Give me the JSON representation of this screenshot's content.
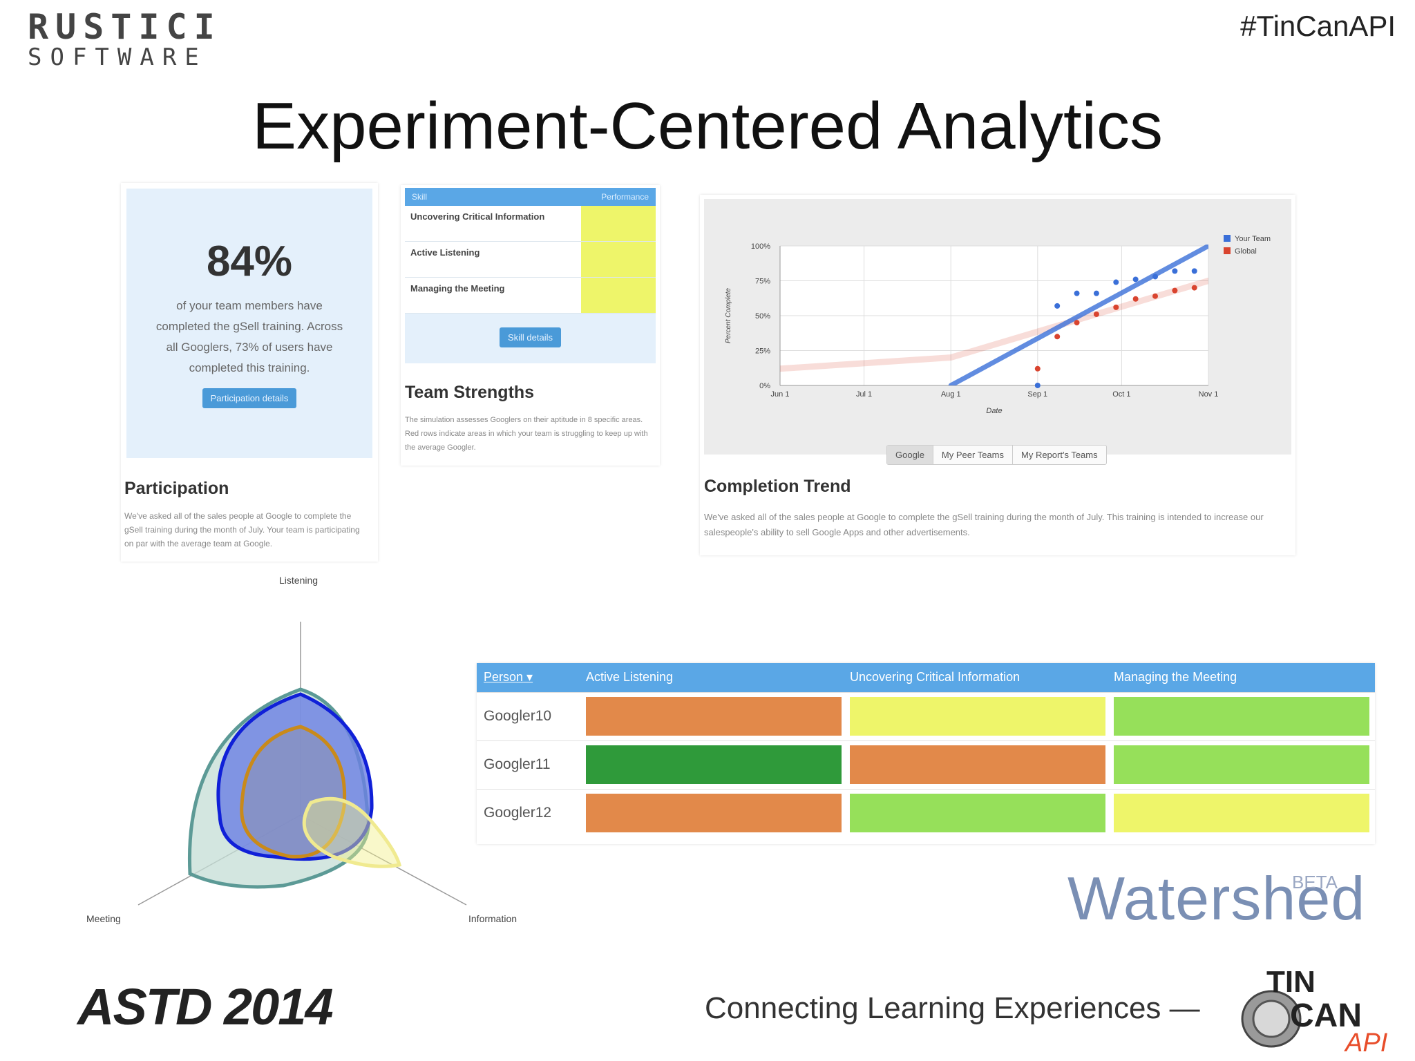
{
  "header": {
    "logo_line1": "RUSTICI",
    "logo_line2": "SOFTWARE",
    "hashtag": "#TinCanAPI",
    "title": "Experiment-Centered Analytics"
  },
  "participation": {
    "percent": "84%",
    "text": "of your team members have completed the gSell training. Across all Googlers, 73% of users have completed this training.",
    "button": "Participation details",
    "heading": "Participation",
    "description": "We've asked all of the sales people at Google to complete the gSell training during the month of July. Your team is participating on par with the average team at Google."
  },
  "team_strengths": {
    "col_skill": "Skill",
    "col_performance": "Performance",
    "skills": [
      "Uncovering Critical Information",
      "Active Listening",
      "Managing the Meeting"
    ],
    "button": "Skill details",
    "heading": "Team Strengths",
    "description": "The simulation assesses Googlers on their aptitude in 8 specific areas. Red rows indicate areas in which your team is struggling to keep up with the average Googler.",
    "performance_color": "#eef56a"
  },
  "completion_trend": {
    "heading": "Completion Trend",
    "description": "We've asked all of the sales people at Google to complete the gSell training during the month of July. This training is intended to increase our salespeople's ability to sell Google Apps and other advertisements.",
    "segments": [
      "Google",
      "My Peer Teams",
      "My Report's Teams"
    ],
    "selected_segment": "Google"
  },
  "chart_data": {
    "type": "line",
    "title": "",
    "xlabel": "Date",
    "ylabel": "Percent Complete",
    "x_ticks": [
      "Jun 1",
      "Jul 1",
      "Aug 1",
      "Sep 1",
      "Oct 1",
      "Nov 1"
    ],
    "y_ticks": [
      "0%",
      "25%",
      "50%",
      "75%",
      "100%"
    ],
    "ylim": [
      0,
      100
    ],
    "legend_position": "right",
    "series": [
      {
        "name": "Your Team",
        "color": "#3a6fd8",
        "points": [
          [
            "Sep 1",
            0
          ],
          [
            "Sep 8",
            57
          ],
          [
            "Sep 15",
            66
          ],
          [
            "Sep 22",
            66
          ],
          [
            "Sep 29",
            74
          ],
          [
            "Oct 6",
            76
          ],
          [
            "Oct 13",
            78
          ],
          [
            "Oct 20",
            82
          ],
          [
            "Oct 27",
            82
          ]
        ],
        "trend": [
          [
            "Aug 1",
            0
          ],
          [
            "Nov 1",
            100
          ]
        ]
      },
      {
        "name": "Global",
        "color": "#d9442f",
        "points": [
          [
            "Sep 1",
            12
          ],
          [
            "Sep 8",
            35
          ],
          [
            "Sep 15",
            45
          ],
          [
            "Sep 22",
            51
          ],
          [
            "Sep 29",
            56
          ],
          [
            "Oct 6",
            62
          ],
          [
            "Oct 13",
            64
          ],
          [
            "Oct 20",
            68
          ],
          [
            "Oct 27",
            70
          ]
        ],
        "trend": [
          [
            "Jun 1",
            12
          ],
          [
            "Aug 1",
            20
          ],
          [
            "Nov 1",
            75
          ]
        ]
      }
    ]
  },
  "radar": {
    "axis_labels": [
      "Listening",
      "Information",
      "Meeting"
    ]
  },
  "person_table": {
    "columns": [
      "Person",
      "Active Listening",
      "Uncovering Critical Information",
      "Managing the Meeting"
    ],
    "rows": [
      {
        "name": "Googler10",
        "colors": [
          "#e2894a",
          "#eef56a",
          "#96e05a"
        ]
      },
      {
        "name": "Googler11",
        "colors": [
          "#2f9a3a",
          "#e2894a",
          "#96e05a"
        ]
      },
      {
        "name": "Googler12",
        "colors": [
          "#e2894a",
          "#96e05a",
          "#eef56a"
        ]
      }
    ]
  },
  "branding": {
    "watershed": "Watershed",
    "beta": "BETA",
    "astd": "ASTD 2014",
    "tagline": "Connecting Learning Experiences —",
    "tincan_tin": "TIN",
    "tincan_can": "CAN",
    "tincan_api": "API"
  }
}
